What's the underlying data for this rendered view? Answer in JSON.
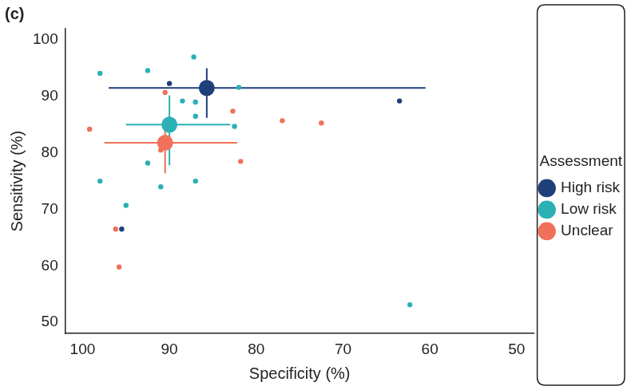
{
  "chart_data": {
    "type": "scatter",
    "title": "(c)",
    "x_label": "Specificity (%)",
    "y_label": "Sensitivity (%)",
    "xlim": [
      102,
      48
    ],
    "ylim": [
      48,
      102
    ],
    "xticks": [
      100,
      90,
      80,
      70,
      60,
      50
    ],
    "yticks": [
      50,
      60,
      70,
      80,
      90,
      100
    ],
    "grid": false,
    "legend": "right",
    "legend_title": "Assessment",
    "series": [
      {
        "name": "High risk",
        "color": "#1f3f7a",
        "x": [
          90,
          95.5,
          63.5
        ],
        "values": [
          92.3,
          66.5,
          89.2
        ],
        "summary": {
          "x": 85.7,
          "y": 91.5,
          "x_low": 60.5,
          "x_high": 97,
          "y_low": 86.2,
          "y_high": 95
        }
      },
      {
        "name": "Low risk",
        "color": "#2ab0b5",
        "x": [
          98,
          92.5,
          87.2,
          88.5,
          87,
          87,
          82,
          82.5,
          92.5,
          98,
          95,
          91,
          87,
          62.3
        ],
        "values": [
          94.1,
          94.6,
          97.0,
          89.2,
          89.0,
          86.5,
          91.6,
          84.7,
          78.2,
          75.0,
          70.7,
          74.0,
          75.0,
          53.1
        ],
        "summary": {
          "x": 90,
          "y": 85,
          "x_low": 83,
          "x_high": 95,
          "y_low": 77.8,
          "y_high": 90.2
        }
      },
      {
        "name": "Unclear",
        "color": "#f0705a",
        "x": [
          99.2,
          90.5,
          82.7,
          77,
          72.5,
          81.8,
          96.2,
          95.8,
          91,
          90.6
        ],
        "values": [
          84.2,
          90.7,
          87.4,
          85.7,
          85.3,
          78.5,
          66.5,
          59.8,
          80.5,
          81.0
        ],
        "summary": {
          "x": 90.5,
          "y": 81.8,
          "x_low": 82.2,
          "x_high": 97.5,
          "y_low": 76.4,
          "y_high": 86
        }
      }
    ]
  }
}
